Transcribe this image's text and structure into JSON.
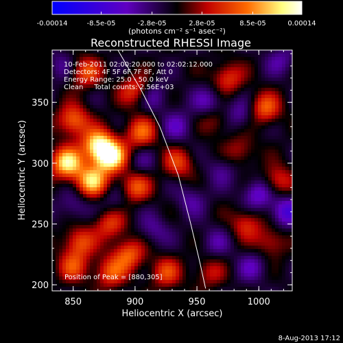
{
  "chart_data": {
    "type": "heatmap",
    "title": "Reconstructed RHESSI Image",
    "xlabel": "Heliocentric X (arcsec)",
    "ylabel": "Heliocentric Y (arcsec)",
    "xlim": [
      833,
      1027
    ],
    "ylim": [
      195,
      393
    ],
    "x_ticks": [
      850,
      900,
      950,
      1000
    ],
    "y_ticks": [
      200,
      250,
      300,
      350
    ],
    "x_tick_labels": [
      "850",
      "900",
      "950",
      "1000"
    ],
    "y_tick_labels": [
      "200",
      "250",
      "300",
      "350"
    ],
    "colorbar": {
      "range": [
        -0.00014,
        0.00014
      ],
      "tick_labels": [
        "-0.00014",
        "-8.5e-05",
        "-2.8e-05",
        "2.8e-05",
        "8.5e-05",
        "0.00014"
      ],
      "unit_label": "(photons cm⁻² s⁻¹ asec⁻²)"
    },
    "annotations": [
      "10-Feb-2011 02:00:20.000 to 02:02:12.000",
      "Detectors: 4F 5F 6F 7F 8F, Att 0",
      "Energy Range: 25.0 - 50.0 keV",
      "Clean     Total counts: 2.56E+03"
    ],
    "peak_label": "Position of Peak = [880,305]",
    "peak_position": [
      880,
      305
    ],
    "limb_curve": [
      [
        885,
        395
      ],
      [
        905,
        360
      ],
      [
        920,
        330
      ],
      [
        935,
        290
      ],
      [
        945,
        250
      ],
      [
        952,
        220
      ],
      [
        957,
        197
      ]
    ],
    "hot_spots": [
      {
        "x": 880,
        "y": 305,
        "w": 1.0
      },
      {
        "x": 845,
        "y": 300,
        "w": 0.9
      },
      {
        "x": 870,
        "y": 315,
        "w": 0.85
      },
      {
        "x": 865,
        "y": 285,
        "w": 0.8
      },
      {
        "x": 900,
        "y": 280,
        "w": 0.55
      },
      {
        "x": 850,
        "y": 335,
        "w": 0.6
      },
      {
        "x": 905,
        "y": 325,
        "w": 0.55
      },
      {
        "x": 900,
        "y": 360,
        "w": 0.45
      },
      {
        "x": 860,
        "y": 375,
        "w": 0.5
      },
      {
        "x": 880,
        "y": 250,
        "w": 0.45
      },
      {
        "x": 855,
        "y": 235,
        "w": 0.5
      },
      {
        "x": 895,
        "y": 225,
        "w": 0.55
      },
      {
        "x": 880,
        "y": 210,
        "w": 0.5
      },
      {
        "x": 850,
        "y": 215,
        "w": 0.45
      },
      {
        "x": 925,
        "y": 210,
        "w": 0.45
      },
      {
        "x": 935,
        "y": 300,
        "w": 0.45
      },
      {
        "x": 975,
        "y": 370,
        "w": 0.45
      },
      {
        "x": 1005,
        "y": 345,
        "w": 0.55
      },
      {
        "x": 1015,
        "y": 285,
        "w": 0.45
      },
      {
        "x": 990,
        "y": 250,
        "w": 0.4
      },
      {
        "x": 1010,
        "y": 235,
        "w": 0.35
      },
      {
        "x": 960,
        "y": 210,
        "w": 0.3
      },
      {
        "x": 965,
        "y": 335,
        "w": 0.3
      },
      {
        "x": 985,
        "y": 310,
        "w": 0.3
      }
    ],
    "cold_spots": [
      {
        "x": 1000,
        "y": 275,
        "w": 0.8
      },
      {
        "x": 1022,
        "y": 260,
        "w": 0.9
      },
      {
        "x": 960,
        "y": 350,
        "w": 0.6
      },
      {
        "x": 935,
        "y": 330,
        "w": 0.55
      },
      {
        "x": 915,
        "y": 355,
        "w": 0.5
      },
      {
        "x": 985,
        "y": 340,
        "w": 0.55
      },
      {
        "x": 995,
        "y": 215,
        "w": 0.5
      },
      {
        "x": 945,
        "y": 270,
        "w": 0.45
      },
      {
        "x": 970,
        "y": 295,
        "w": 0.4
      },
      {
        "x": 850,
        "y": 265,
        "w": 0.45
      },
      {
        "x": 885,
        "y": 270,
        "w": 0.4
      },
      {
        "x": 915,
        "y": 245,
        "w": 0.45
      },
      {
        "x": 905,
        "y": 300,
        "w": 0.35
      },
      {
        "x": 840,
        "y": 380,
        "w": 0.4
      },
      {
        "x": 1018,
        "y": 385,
        "w": 0.45
      },
      {
        "x": 965,
        "y": 235,
        "w": 0.4
      }
    ]
  },
  "footer": {
    "timestamp": "8-Aug-2013 17:12"
  },
  "colors": {
    "background": "#000000",
    "foreground": "#ffffff",
    "colormap": [
      "#0000ff",
      "#5a00b4",
      "#000000",
      "#c80000",
      "#ff7800",
      "#ffff96",
      "#ffffff"
    ]
  }
}
